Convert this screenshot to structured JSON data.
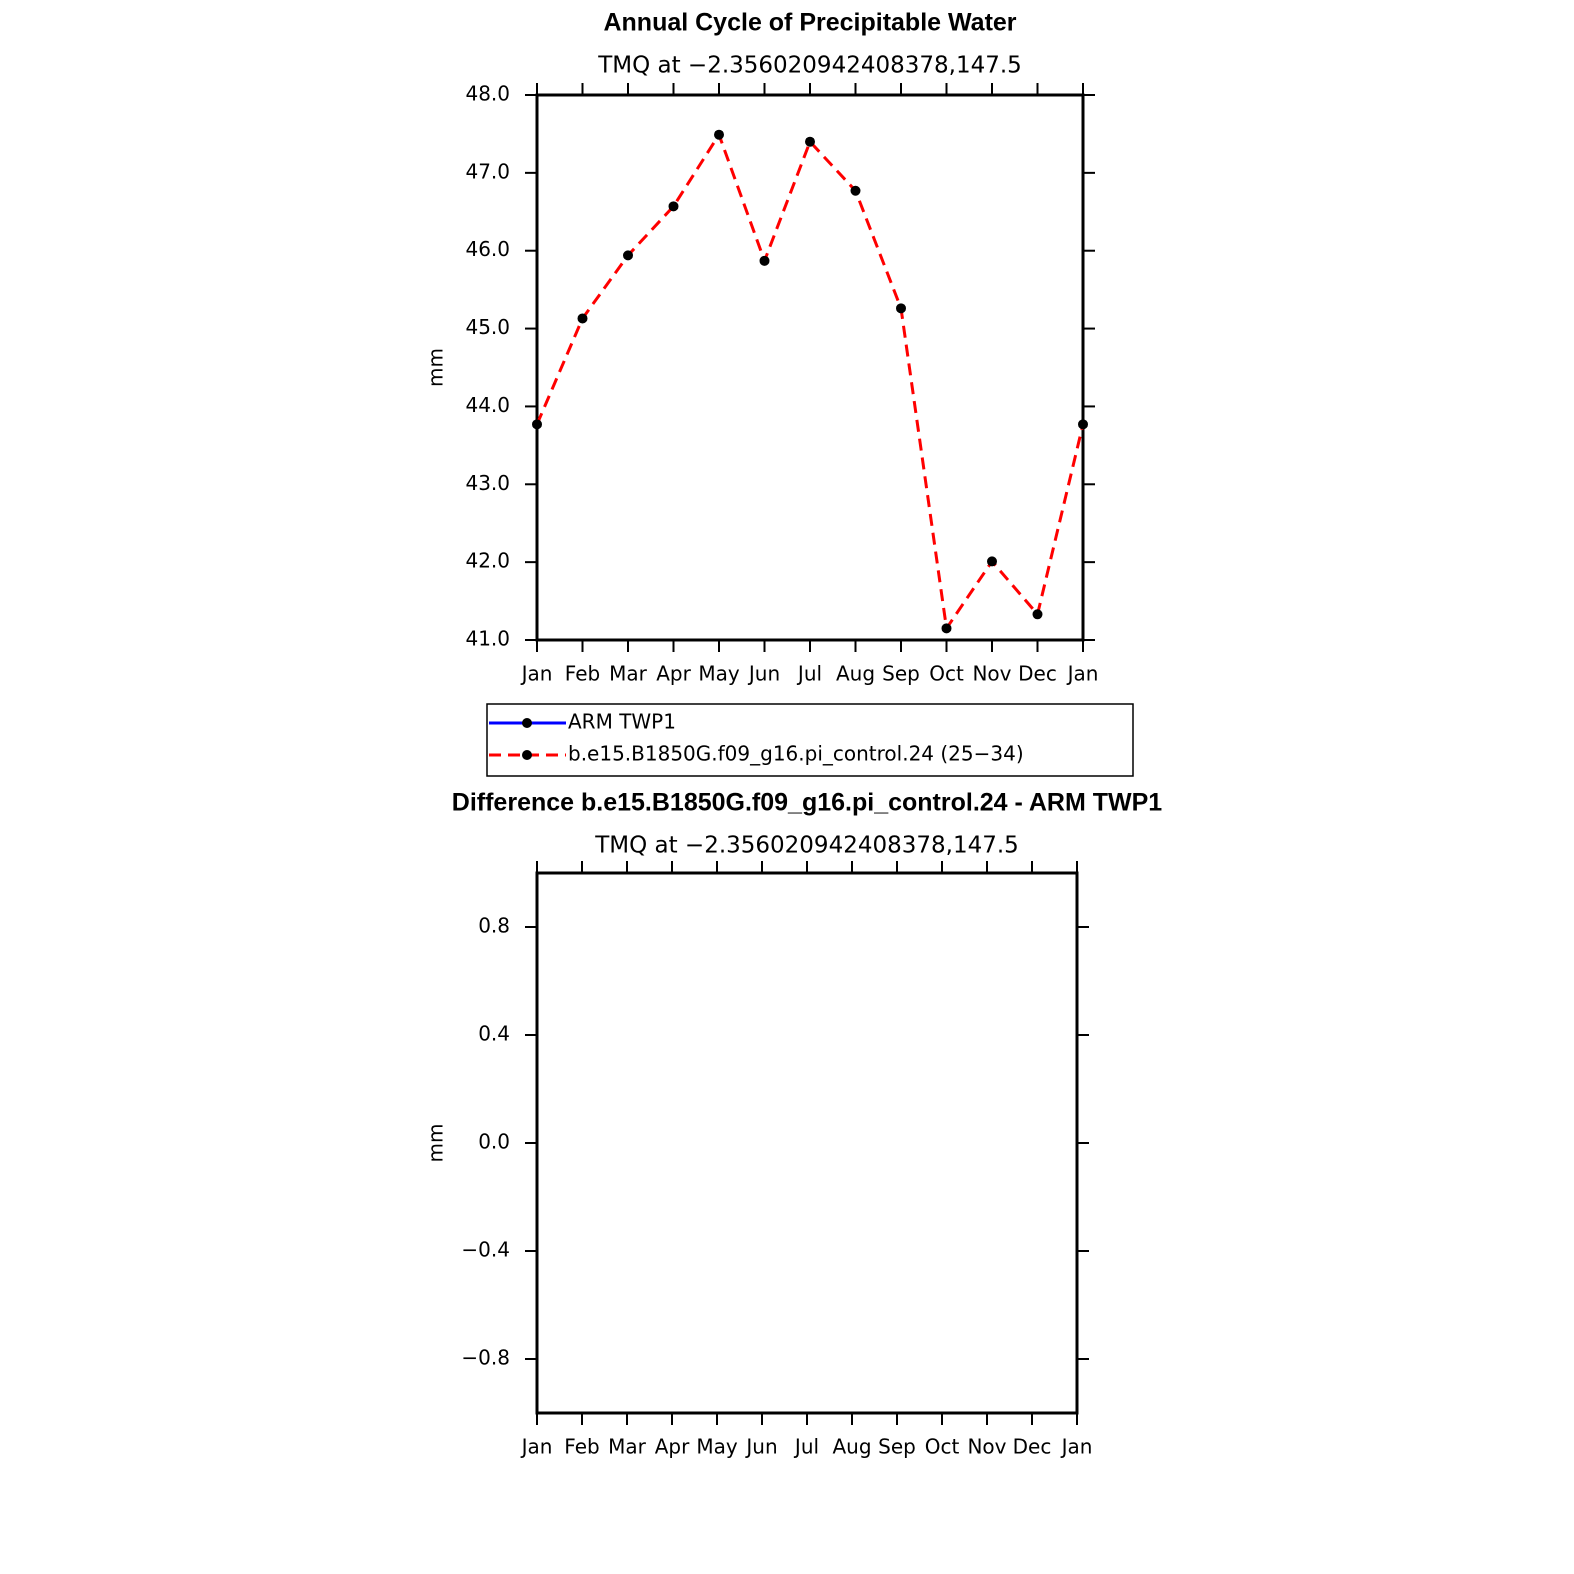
{
  "chart_data": [
    {
      "type": "line",
      "title": "Annual Cycle of Precipitable Water",
      "subtitle": "TMQ at −2.356020942408378,147.5",
      "y_label": "mm",
      "categories": [
        "Jan",
        "Feb",
        "Mar",
        "Apr",
        "May",
        "Jun",
        "Jul",
        "Aug",
        "Sep",
        "Oct",
        "Nov",
        "Dec",
        "Jan"
      ],
      "series": [
        {
          "name": "ARM TWP1",
          "color": "#0000ff",
          "linestyle": "solid",
          "marker_color": "#000000",
          "values": [
            null,
            null,
            null,
            null,
            null,
            null,
            null,
            null,
            null,
            null,
            null,
            null,
            null
          ]
        },
        {
          "name": "b.e15.B1850G.f09_g16.pi_control.24 (25−34)",
          "color": "#ff0000",
          "linestyle": "dashed",
          "marker_color": "#000000",
          "values": [
            43.77,
            45.13,
            45.94,
            46.57,
            47.49,
            45.87,
            47.4,
            46.77,
            45.26,
            41.15,
            42.01,
            41.33,
            43.77
          ]
        }
      ],
      "ylim": [
        41,
        48
      ],
      "yticks": [
        {
          "value": 41,
          "label": "41.0"
        },
        {
          "value": 42,
          "label": "42.0"
        },
        {
          "value": 43,
          "label": "43.0"
        },
        {
          "value": 44,
          "label": "44.0"
        },
        {
          "value": 45,
          "label": "45.0"
        },
        {
          "value": 46,
          "label": "46.0"
        },
        {
          "value": 47,
          "label": "47.0"
        },
        {
          "value": 48,
          "label": "48.0"
        }
      ],
      "legend": "below"
    },
    {
      "type": "line",
      "title": "Difference b.e15.B1850G.f09_g16.pi_control.24 - ARM TWP1",
      "subtitle": "TMQ at −2.356020942408378,147.5",
      "y_label": "mm",
      "categories": [
        "Jan",
        "Feb",
        "Mar",
        "Apr",
        "May",
        "Jun",
        "Jul",
        "Aug",
        "Sep",
        "Oct",
        "Nov",
        "Dec",
        "Jan"
      ],
      "ylim": [
        -1,
        1
      ],
      "yticks": [
        {
          "value": -0.8,
          "label": "−0.8"
        },
        {
          "value": -0.4,
          "label": "−0.4"
        },
        {
          "value": 0,
          "label": "0.0"
        },
        0.4,
        0.8
      ]
    }
  ]
}
